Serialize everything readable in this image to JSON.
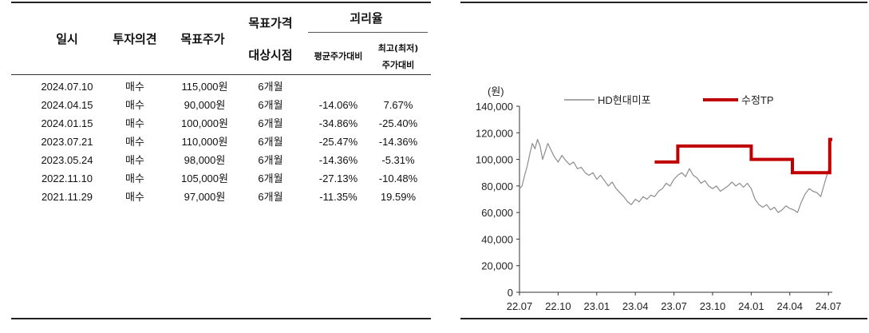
{
  "table": {
    "headers": {
      "date": "일시",
      "opinion": "투자의견",
      "target_price": "목표주가",
      "period_line1": "목표가격",
      "period_line2": "대상시점",
      "divergence": "괴리율",
      "avg_vs": "평균주가대비",
      "hl_vs_line1": "최고(최저)",
      "hl_vs_line2": "주가대비"
    },
    "rows": [
      {
        "date": "2024.07.10",
        "opinion": "매수",
        "target": "115,000원",
        "period": "6개월",
        "avg": "",
        "hl": ""
      },
      {
        "date": "2024.04.15",
        "opinion": "매수",
        "target": "90,000원",
        "period": "6개월",
        "avg": "-14.06%",
        "hl": "7.67%"
      },
      {
        "date": "2024.01.15",
        "opinion": "매수",
        "target": "100,000원",
        "period": "6개월",
        "avg": "-34.86%",
        "hl": "-25.40%"
      },
      {
        "date": "2023.07.21",
        "opinion": "매수",
        "target": "110,000원",
        "period": "6개월",
        "avg": "-25.47%",
        "hl": "-14.36%"
      },
      {
        "date": "2023.05.24",
        "opinion": "매수",
        "target": "98,000원",
        "period": "6개월",
        "avg": "-14.36%",
        "hl": "-5.31%"
      },
      {
        "date": "2022.11.10",
        "opinion": "매수",
        "target": "105,000원",
        "period": "6개월",
        "avg": "-27.13%",
        "hl": "-10.48%"
      },
      {
        "date": "2021.11.29",
        "opinion": "매수",
        "target": "97,000원",
        "period": "6개월",
        "avg": "-11.35%",
        "hl": "19.59%"
      }
    ]
  },
  "chart_data": {
    "type": "line",
    "unit_label": "(원)",
    "y_ticks": [
      "0",
      "20,000",
      "40,000",
      "60,000",
      "80,000",
      "100,000",
      "120,000",
      "140,000"
    ],
    "x_ticks": [
      "22.07",
      "22.10",
      "23.01",
      "23.04",
      "23.07",
      "23.10",
      "24.01",
      "24.04",
      "24.07"
    ],
    "ylim": [
      0,
      140000
    ],
    "xlim": [
      0,
      24.3
    ],
    "grid": false,
    "legend_position": "top",
    "series": [
      {
        "name": "HD현대미포",
        "color": "#8c8c8c",
        "points": [
          [
            0,
            78000
          ],
          [
            0.2,
            80000
          ],
          [
            0.4,
            88000
          ],
          [
            0.6,
            95000
          ],
          [
            0.8,
            104000
          ],
          [
            1.0,
            112000
          ],
          [
            1.2,
            108000
          ],
          [
            1.4,
            115000
          ],
          [
            1.6,
            110000
          ],
          [
            1.8,
            100000
          ],
          [
            2.0,
            106000
          ],
          [
            2.2,
            112000
          ],
          [
            2.4,
            108000
          ],
          [
            2.7,
            102000
          ],
          [
            3.0,
            98000
          ],
          [
            3.3,
            103000
          ],
          [
            3.6,
            99000
          ],
          [
            3.9,
            96000
          ],
          [
            4.2,
            98000
          ],
          [
            4.5,
            93000
          ],
          [
            4.8,
            94000
          ],
          [
            5.1,
            90000
          ],
          [
            5.4,
            88000
          ],
          [
            5.7,
            90000
          ],
          [
            6.0,
            85000
          ],
          [
            6.3,
            88000
          ],
          [
            6.6,
            84000
          ],
          [
            6.9,
            80000
          ],
          [
            7.2,
            83000
          ],
          [
            7.5,
            78000
          ],
          [
            7.8,
            75000
          ],
          [
            8.1,
            72000
          ],
          [
            8.4,
            68000
          ],
          [
            8.7,
            66000
          ],
          [
            9.0,
            70000
          ],
          [
            9.3,
            68000
          ],
          [
            9.6,
            72000
          ],
          [
            9.9,
            70000
          ],
          [
            10.2,
            73000
          ],
          [
            10.5,
            72000
          ],
          [
            10.8,
            76000
          ],
          [
            11.1,
            78000
          ],
          [
            11.4,
            82000
          ],
          [
            11.7,
            80000
          ],
          [
            12.0,
            85000
          ],
          [
            12.3,
            88000
          ],
          [
            12.6,
            90000
          ],
          [
            12.9,
            87000
          ],
          [
            13.2,
            93000
          ],
          [
            13.5,
            88000
          ],
          [
            13.8,
            86000
          ],
          [
            14.1,
            82000
          ],
          [
            14.4,
            84000
          ],
          [
            14.7,
            80000
          ],
          [
            15.0,
            78000
          ],
          [
            15.3,
            80000
          ],
          [
            15.6,
            76000
          ],
          [
            15.9,
            78000
          ],
          [
            16.2,
            80000
          ],
          [
            16.5,
            83000
          ],
          [
            16.8,
            80000
          ],
          [
            17.1,
            82000
          ],
          [
            17.4,
            79000
          ],
          [
            17.7,
            82000
          ],
          [
            18.0,
            78000
          ],
          [
            18.3,
            70000
          ],
          [
            18.6,
            66000
          ],
          [
            18.9,
            64000
          ],
          [
            19.2,
            66000
          ],
          [
            19.5,
            62000
          ],
          [
            19.8,
            64000
          ],
          [
            20.1,
            60000
          ],
          [
            20.4,
            62000
          ],
          [
            20.7,
            65000
          ],
          [
            21.0,
            63000
          ],
          [
            21.3,
            62000
          ],
          [
            21.6,
            60000
          ],
          [
            21.9,
            68000
          ],
          [
            22.2,
            74000
          ],
          [
            22.5,
            78000
          ],
          [
            22.8,
            76000
          ],
          [
            23.1,
            75000
          ],
          [
            23.4,
            72000
          ],
          [
            23.7,
            82000
          ],
          [
            24.0,
            92000
          ],
          [
            24.2,
            98000
          ]
        ]
      },
      {
        "name": "수정TP",
        "color": "#c00000",
        "points": [
          [
            10.5,
            98000
          ],
          [
            12.3,
            98000
          ],
          [
            12.3,
            110000
          ],
          [
            18.0,
            110000
          ],
          [
            18.0,
            100000
          ],
          [
            21.2,
            100000
          ],
          [
            21.2,
            90000
          ],
          [
            24.1,
            90000
          ],
          [
            24.1,
            115000
          ],
          [
            24.3,
            115000
          ]
        ]
      }
    ]
  }
}
